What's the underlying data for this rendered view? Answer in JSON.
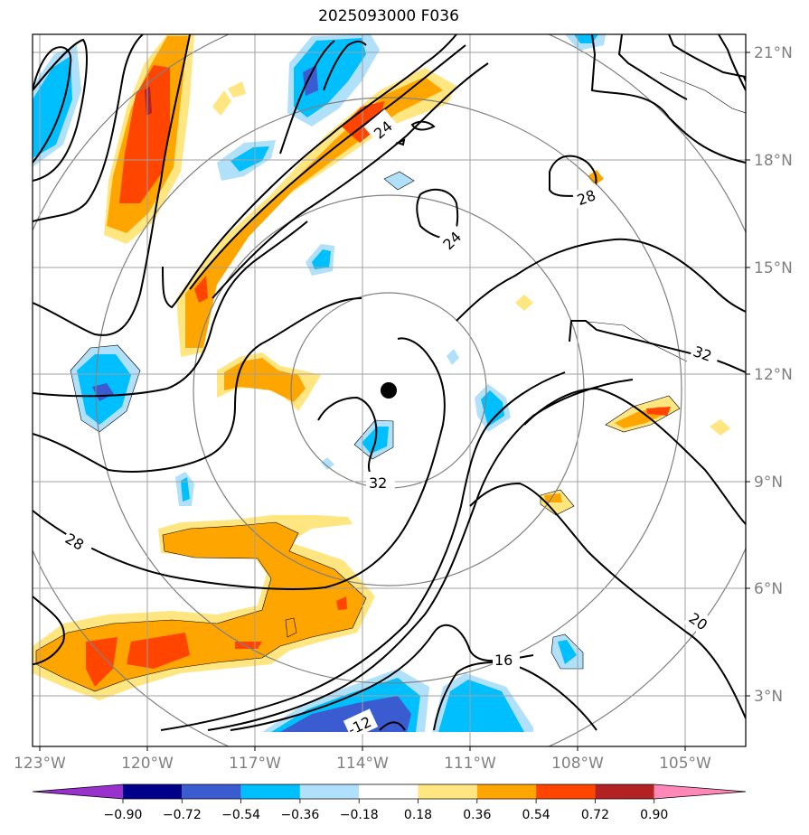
{
  "title": "2025093000 F036",
  "lat_labels": [
    "21°N",
    "18°N",
    "15°N",
    "12°N",
    "9°N",
    "6°N",
    "3°N"
  ],
  "lon_labels": [
    "123°W",
    "120°W",
    "117°W",
    "114°W",
    "111°W",
    "108°W",
    "105°W"
  ],
  "contour_labels": [
    "24",
    "24",
    "28",
    "32",
    "32",
    "28",
    "20",
    "16",
    "-12"
  ],
  "colorbar": {
    "ticks": [
      "−0.90",
      "−0.72",
      "−0.54",
      "−0.36",
      "−0.18",
      "0.18",
      "0.36",
      "0.54",
      "0.72",
      "0.90"
    ],
    "colors": [
      "#9932cc",
      "#00008b",
      "#3b5bd0",
      "#00bfff",
      "#b0e0fa",
      "#ffffff",
      "#ffe680",
      "#ffa500",
      "#ff4500",
      "#b22222",
      "#ff88b8"
    ]
  },
  "storm_center": {
    "lat": 11.5,
    "lon": "-113.3"
  }
}
